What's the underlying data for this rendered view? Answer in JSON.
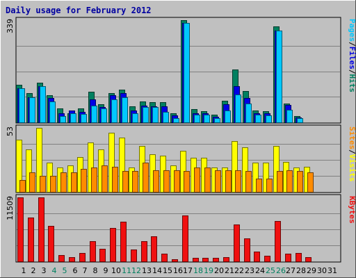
{
  "colors": {
    "background": "#c0c0c0",
    "title": "#0000a0",
    "pages": "#00c8ff",
    "files": "#0000e6",
    "hits": "#008060",
    "visits": "#ffff00",
    "sites": "#ff8c00",
    "kbytes": "#f01010",
    "weekend_label": "#008060",
    "weekday_label": "#000000"
  },
  "chart_data": {
    "type": "bar",
    "title": "Daily usage for February 2012",
    "categories": [
      "1",
      "2",
      "3",
      "4",
      "5",
      "6",
      "7",
      "8",
      "9",
      "10",
      "11",
      "12",
      "13",
      "14",
      "15",
      "16",
      "17",
      "18",
      "19",
      "20",
      "21",
      "22",
      "23",
      "24",
      "25",
      "26",
      "27",
      "28",
      "29",
      "30",
      "31"
    ],
    "weekend_days": [
      "4",
      "5",
      "11",
      "12",
      "18",
      "19",
      "25",
      "26"
    ],
    "panels": [
      {
        "id": "panel-hits-files-pages",
        "ymax_label": "339",
        "ymax": 339,
        "side_labels": [
          {
            "text": "Pages",
            "color": "#00c8ff"
          },
          {
            "text": "/",
            "color": "#000000"
          },
          {
            "text": "Files",
            "color": "#0000e6"
          },
          {
            "text": "/",
            "color": "#000000"
          },
          {
            "text": "Hits",
            "color": "#008060"
          }
        ],
        "series": [
          {
            "name": "Hits",
            "color": "#008060",
            "values": [
              125,
              96,
              132,
              91,
              45,
              30,
              45,
              101,
              59,
              98,
              109,
              53,
              70,
              68,
              68,
              31,
              339,
              43,
              38,
              26,
              71,
              175,
              103,
              39,
              37,
              319,
              62,
              20,
              null,
              null,
              null
            ]
          },
          {
            "name": "Files",
            "color": "#0000e6",
            "values": [
              113,
              83,
              120,
              80,
              29,
              40,
              34,
              77,
              50,
              89,
              98,
              39,
              56,
              54,
              53,
              24,
              330,
              30,
              30,
              18,
              61,
              121,
              80,
              29,
              29,
              305,
              58,
              17,
              null,
              null,
              null
            ]
          },
          {
            "name": "Pages",
            "color": "#00c8ff",
            "values": [
              112,
              82,
              119,
              69,
              21,
              29,
              28,
              56,
              45,
              76,
              84,
              30,
              50,
              50,
              34,
              14,
              330,
              25,
              25,
              14,
              39,
              93,
              63,
              26,
              22,
              305,
              42,
              14,
              null,
              null,
              null
            ]
          }
        ]
      },
      {
        "id": "panel-visits-sites",
        "ymax_label": "53",
        "ymax": 53,
        "side_labels": [
          {
            "text": "Sites",
            "color": "#ff8c00"
          },
          {
            "text": "/",
            "color": "#000000"
          },
          {
            "text": "Visits",
            "color": "#ffff00"
          }
        ],
        "series": [
          {
            "name": "Visits",
            "color": "#ffff00",
            "values": [
              43,
              35,
              53,
              24,
              20,
              22,
              29,
              41,
              35,
              49,
              45,
              20,
              38,
              31,
              30,
              22,
              34,
              28,
              28,
              20,
              20,
              42,
              37,
              24,
              24,
              38,
              25,
              20,
              21,
              null,
              null
            ]
          },
          {
            "name": "Sites",
            "color": "#ff8c00",
            "values": [
              10,
              16,
              13,
              13,
              16,
              16,
              19,
              20,
              22,
              21,
              17,
              17,
              24,
              18,
              18,
              18,
              17,
              20,
              20,
              18,
              18,
              18,
              17,
              11,
              11,
              17,
              18,
              17,
              16,
              null,
              null
            ]
          }
        ]
      },
      {
        "id": "panel-kbytes",
        "ymax_label": "11509",
        "ymax": 11509,
        "side_labels": [
          {
            "text": "KBytes",
            "color": "#f01010"
          }
        ],
        "series": [
          {
            "name": "KBytes",
            "color": "#f01010",
            "values": [
              11509,
              7860,
              11509,
              6402,
              1150,
              770,
              1440,
              3690,
              2219,
              6026,
              7165,
              2092,
              3593,
              4450,
              1350,
              340,
              8229,
              575,
              670,
              590,
              700,
              6650,
              4082,
              1720,
              1000,
              7207,
              1380,
              1480,
              790,
              null,
              null
            ]
          }
        ]
      }
    ]
  }
}
